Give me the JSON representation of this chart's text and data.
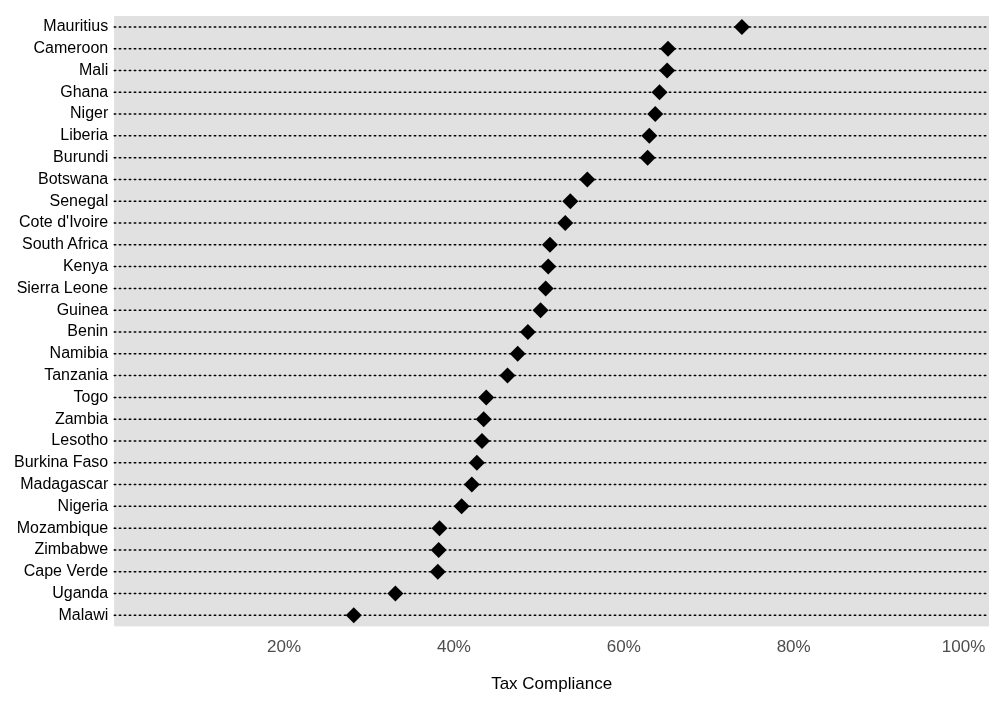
{
  "chart_data": {
    "type": "scatter",
    "orientation": "horizontal",
    "xlabel": "Tax Compliance",
    "categories": [
      "Mauritius",
      "Cameroon",
      "Mali",
      "Ghana",
      "Niger",
      "Liberia",
      "Burundi",
      "Botswana",
      "Senegal",
      "Cote d'Ivoire",
      "South Africa",
      "Kenya",
      "Sierra Leone",
      "Guinea",
      "Benin",
      "Namibia",
      "Tanzania",
      "Togo",
      "Zambia",
      "Lesotho",
      "Burkina Faso",
      "Madagascar",
      "Nigeria",
      "Mozambique",
      "Zimbabwe",
      "Cape Verde",
      "Uganda",
      "Malawi"
    ],
    "values": [
      73.9,
      65.2,
      65.1,
      64.2,
      63.7,
      63.0,
      62.8,
      55.7,
      53.7,
      53.1,
      51.3,
      51.1,
      50.8,
      50.2,
      48.7,
      47.5,
      46.3,
      43.8,
      43.5,
      43.3,
      42.7,
      42.1,
      40.9,
      38.3,
      38.2,
      38.1,
      33.1,
      28.2
    ],
    "color": "#000000",
    "marker": "diamond",
    "grid": "y",
    "line_style": "dotted",
    "legend": false,
    "xlim": [
      0,
      103
    ],
    "xticks": [
      {
        "value": 0,
        "label": null
      },
      {
        "value": 20,
        "label": "20%"
      },
      {
        "value": 40,
        "label": "40%"
      },
      {
        "value": 60,
        "label": "60%"
      },
      {
        "value": 80,
        "label": "80%"
      },
      {
        "value": 100,
        "label": "100%"
      }
    ]
  }
}
